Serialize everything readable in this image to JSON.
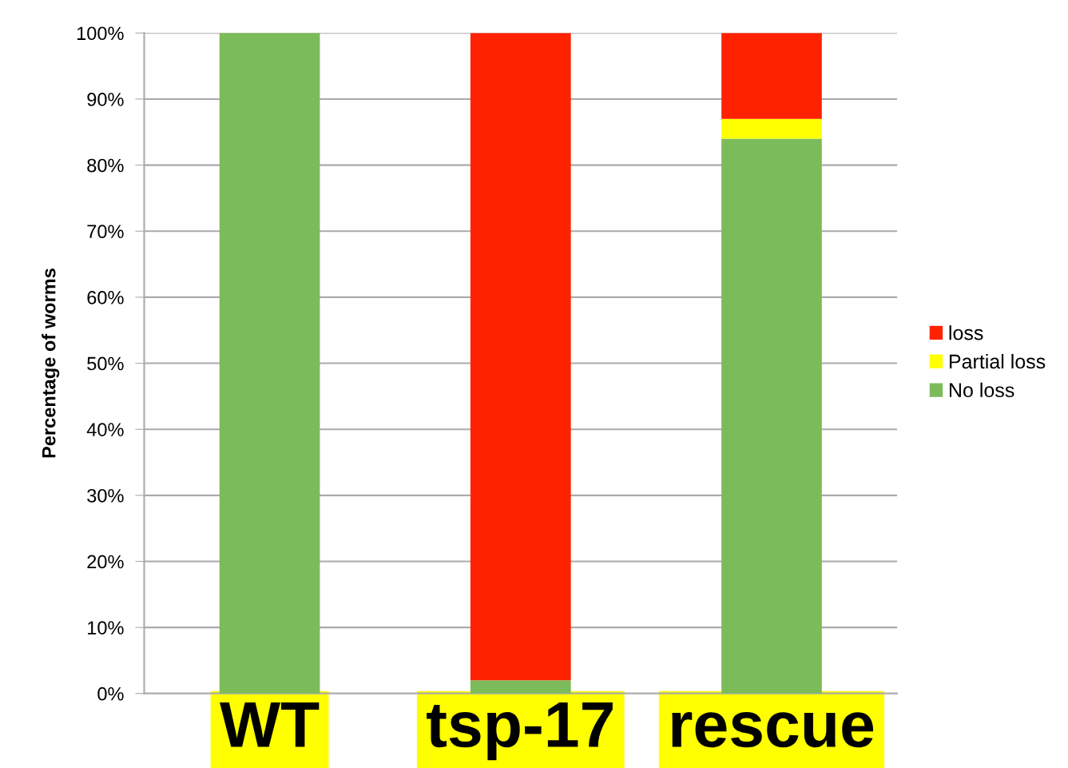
{
  "chart_data": {
    "type": "bar",
    "stacked": true,
    "ylabel": "Percentage of worms",
    "categories": [
      "WT",
      "tsp-17",
      "rescue"
    ],
    "series": [
      {
        "name": "No loss",
        "color": "#7cbb5a",
        "values": [
          100,
          2,
          84
        ]
      },
      {
        "name": "Partial loss",
        "color": "#ffff00",
        "values": [
          0,
          0,
          3
        ]
      },
      {
        "name": "loss",
        "color": "#ff2200",
        "values": [
          0,
          98,
          13
        ]
      }
    ],
    "ylim": [
      0,
      100
    ],
    "yticks": [
      {
        "value": 0,
        "label": "0%"
      },
      {
        "value": 10,
        "label": "10%"
      },
      {
        "value": 20,
        "label": "20%"
      },
      {
        "value": 30,
        "label": "30%"
      },
      {
        "value": 40,
        "label": "40%"
      },
      {
        "value": 50,
        "label": "50%"
      },
      {
        "value": 60,
        "label": "60%"
      },
      {
        "value": 70,
        "label": "70%"
      },
      {
        "value": 80,
        "label": "80%"
      },
      {
        "value": 90,
        "label": "90%"
      },
      {
        "value": 100,
        "label": "100%"
      }
    ],
    "grid": "y",
    "legend": "right"
  }
}
